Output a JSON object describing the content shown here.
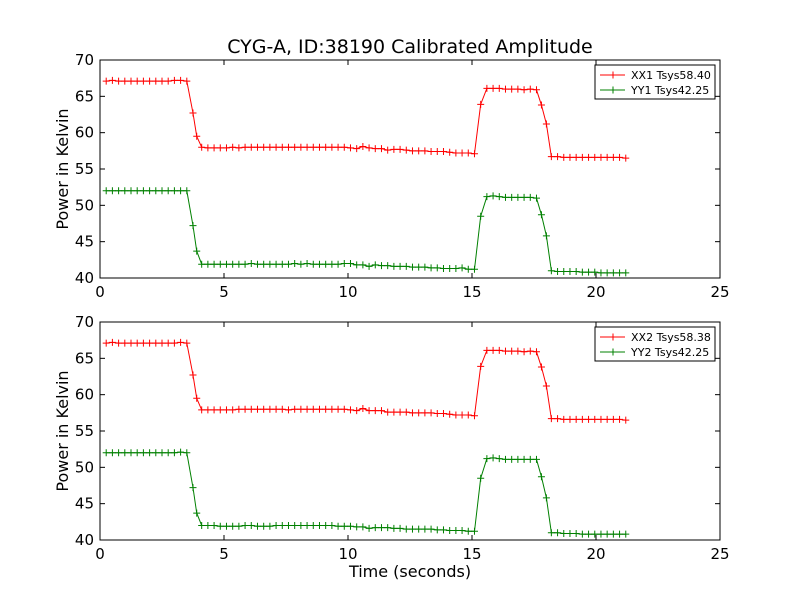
{
  "figure": {
    "title": "CYG-A, ID:38190 Calibrated Amplitude"
  },
  "chart_data": [
    {
      "type": "line",
      "title": "CYG-A, ID:38190 Calibrated Amplitude",
      "xlabel": "",
      "ylabel": "Power in Kelvin",
      "xlim": [
        0,
        25
      ],
      "ylim": [
        40,
        70
      ],
      "xticks": [
        "0",
        "5",
        "10",
        "15",
        "20",
        "25"
      ],
      "yticks": [
        "40",
        "45",
        "50",
        "55",
        "60",
        "65",
        "70"
      ],
      "grid": false,
      "legend": "top-right",
      "marker": "plus",
      "series": [
        {
          "name": "XX1 Tsys58.40",
          "color": "#ff0000",
          "x": [
            0.25,
            0.5,
            0.75,
            1,
            1.25,
            1.5,
            1.75,
            2,
            2.25,
            2.5,
            2.75,
            3,
            3.25,
            3.5,
            3.75,
            3.9,
            4.1,
            4.35,
            4.6,
            4.85,
            5.1,
            5.35,
            5.6,
            5.85,
            6.1,
            6.35,
            6.6,
            6.85,
            7.1,
            7.35,
            7.6,
            7.85,
            8.1,
            8.35,
            8.6,
            8.85,
            9.1,
            9.35,
            9.6,
            9.85,
            10.1,
            10.35,
            10.6,
            10.85,
            11.1,
            11.35,
            11.6,
            11.85,
            12.1,
            12.35,
            12.6,
            12.85,
            13.1,
            13.35,
            13.6,
            13.85,
            14.1,
            14.35,
            14.6,
            14.85,
            15.1,
            15.35,
            15.6,
            15.85,
            16.1,
            16.35,
            16.6,
            16.85,
            17.1,
            17.35,
            17.6,
            17.8,
            18.0,
            18.2,
            18.45,
            18.7,
            18.95,
            19.2,
            19.45,
            19.7,
            19.95,
            20.2,
            20.45,
            20.7,
            20.95,
            21.2
          ],
          "y": [
            67.1,
            67.2,
            67.1,
            67.1,
            67.1,
            67.1,
            67.1,
            67.1,
            67.1,
            67.1,
            67.1,
            67.2,
            67.2,
            67.1,
            62.7,
            59.5,
            58.0,
            57.9,
            57.9,
            57.9,
            57.9,
            58.0,
            57.9,
            58.0,
            58.0,
            58.0,
            58.0,
            58.0,
            58.0,
            58.0,
            58.0,
            58.0,
            58.0,
            58.0,
            58.0,
            58.0,
            58.0,
            58.0,
            58.0,
            58.0,
            57.9,
            57.8,
            58.1,
            57.9,
            57.8,
            57.8,
            57.6,
            57.7,
            57.7,
            57.6,
            57.5,
            57.5,
            57.5,
            57.4,
            57.4,
            57.4,
            57.3,
            57.2,
            57.2,
            57.2,
            57.1,
            63.9,
            66.1,
            66.1,
            66.1,
            66.0,
            66.0,
            66.0,
            65.9,
            66.0,
            65.9,
            63.8,
            61.2,
            56.7,
            56.7,
            56.6,
            56.6,
            56.6,
            56.6,
            56.6,
            56.6,
            56.6,
            56.6,
            56.6,
            56.6,
            56.5
          ]
        },
        {
          "name": "YY1 Tsys42.25",
          "color": "#008000",
          "x": [
            0.25,
            0.5,
            0.75,
            1,
            1.25,
            1.5,
            1.75,
            2,
            2.25,
            2.5,
            2.75,
            3,
            3.25,
            3.5,
            3.75,
            3.9,
            4.1,
            4.35,
            4.6,
            4.85,
            5.1,
            5.35,
            5.6,
            5.85,
            6.1,
            6.35,
            6.6,
            6.85,
            7.1,
            7.35,
            7.6,
            7.85,
            8.1,
            8.35,
            8.6,
            8.85,
            9.1,
            9.35,
            9.6,
            9.85,
            10.1,
            10.35,
            10.6,
            10.85,
            11.1,
            11.35,
            11.6,
            11.85,
            12.1,
            12.35,
            12.6,
            12.85,
            13.1,
            13.35,
            13.6,
            13.85,
            14.1,
            14.35,
            14.6,
            14.85,
            15.1,
            15.35,
            15.6,
            15.85,
            16.1,
            16.35,
            16.6,
            16.85,
            17.1,
            17.35,
            17.6,
            17.8,
            18.0,
            18.2,
            18.45,
            18.7,
            18.95,
            19.2,
            19.45,
            19.7,
            19.95,
            20.2,
            20.45,
            20.7,
            20.95,
            21.2
          ],
          "y": [
            52.0,
            52.0,
            52.0,
            52.0,
            52.0,
            52.0,
            52.0,
            52.0,
            52.0,
            52.0,
            52.0,
            52.0,
            52.0,
            52.0,
            47.2,
            43.7,
            41.9,
            41.9,
            41.9,
            41.9,
            41.9,
            41.9,
            41.9,
            41.9,
            42.0,
            41.9,
            41.9,
            41.9,
            41.9,
            41.9,
            41.9,
            42.0,
            41.9,
            42.0,
            41.9,
            41.9,
            41.9,
            41.9,
            41.9,
            42.0,
            42.0,
            41.8,
            41.8,
            41.6,
            41.8,
            41.7,
            41.7,
            41.6,
            41.6,
            41.6,
            41.5,
            41.5,
            41.5,
            41.4,
            41.4,
            41.3,
            41.3,
            41.3,
            41.4,
            41.2,
            41.2,
            48.5,
            51.2,
            51.3,
            51.2,
            51.1,
            51.1,
            51.1,
            51.1,
            51.1,
            51.0,
            48.7,
            45.8,
            41.0,
            40.9,
            40.9,
            40.9,
            40.9,
            40.8,
            40.8,
            40.8,
            40.7,
            40.7,
            40.7,
            40.7,
            40.7
          ]
        }
      ]
    },
    {
      "type": "line",
      "title": "",
      "xlabel": "Time (seconds)",
      "ylabel": "Power in Kelvin",
      "xlim": [
        0,
        25
      ],
      "ylim": [
        40,
        70
      ],
      "xticks": [
        "0",
        "5",
        "10",
        "15",
        "20",
        "25"
      ],
      "yticks": [
        "40",
        "45",
        "50",
        "55",
        "60",
        "65",
        "70"
      ],
      "grid": false,
      "legend": "top-right",
      "marker": "plus",
      "series": [
        {
          "name": "XX2 Tsys58.38",
          "color": "#ff0000",
          "x": [
            0.25,
            0.5,
            0.75,
            1,
            1.25,
            1.5,
            1.75,
            2,
            2.25,
            2.5,
            2.75,
            3,
            3.25,
            3.5,
            3.75,
            3.9,
            4.1,
            4.35,
            4.6,
            4.85,
            5.1,
            5.35,
            5.6,
            5.85,
            6.1,
            6.35,
            6.6,
            6.85,
            7.1,
            7.35,
            7.6,
            7.85,
            8.1,
            8.35,
            8.6,
            8.85,
            9.1,
            9.35,
            9.6,
            9.85,
            10.1,
            10.35,
            10.6,
            10.85,
            11.1,
            11.35,
            11.6,
            11.85,
            12.1,
            12.35,
            12.6,
            12.85,
            13.1,
            13.35,
            13.6,
            13.85,
            14.1,
            14.35,
            14.6,
            14.85,
            15.1,
            15.35,
            15.6,
            15.85,
            16.1,
            16.35,
            16.6,
            16.85,
            17.1,
            17.35,
            17.6,
            17.8,
            18.0,
            18.2,
            18.45,
            18.7,
            18.95,
            19.2,
            19.45,
            19.7,
            19.95,
            20.2,
            20.45,
            20.7,
            20.95,
            21.2
          ],
          "y": [
            67.1,
            67.2,
            67.1,
            67.1,
            67.1,
            67.1,
            67.1,
            67.1,
            67.1,
            67.1,
            67.1,
            67.1,
            67.2,
            67.1,
            62.7,
            59.5,
            57.9,
            57.9,
            57.9,
            57.9,
            57.9,
            57.9,
            58.0,
            58.0,
            58.0,
            58.0,
            58.0,
            58.0,
            58.0,
            58.0,
            57.9,
            58.0,
            58.0,
            58.0,
            58.0,
            58.0,
            58.0,
            58.0,
            58.0,
            58.0,
            57.9,
            57.8,
            58.1,
            57.8,
            57.8,
            57.8,
            57.6,
            57.6,
            57.6,
            57.6,
            57.5,
            57.5,
            57.5,
            57.5,
            57.4,
            57.4,
            57.3,
            57.2,
            57.2,
            57.2,
            57.1,
            63.9,
            66.1,
            66.1,
            66.1,
            66.0,
            66.0,
            66.0,
            65.9,
            66.0,
            65.9,
            63.8,
            61.2,
            56.7,
            56.7,
            56.6,
            56.6,
            56.6,
            56.6,
            56.6,
            56.6,
            56.6,
            56.6,
            56.6,
            56.6,
            56.5
          ]
        },
        {
          "name": "YY2 Tsys42.25",
          "color": "#008000",
          "x": [
            0.25,
            0.5,
            0.75,
            1,
            1.25,
            1.5,
            1.75,
            2,
            2.25,
            2.5,
            2.75,
            3,
            3.25,
            3.5,
            3.75,
            3.9,
            4.1,
            4.35,
            4.6,
            4.85,
            5.1,
            5.35,
            5.6,
            5.85,
            6.1,
            6.35,
            6.6,
            6.85,
            7.1,
            7.35,
            7.6,
            7.85,
            8.1,
            8.35,
            8.6,
            8.85,
            9.1,
            9.35,
            9.6,
            9.85,
            10.1,
            10.35,
            10.6,
            10.85,
            11.1,
            11.35,
            11.6,
            11.85,
            12.1,
            12.35,
            12.6,
            12.85,
            13.1,
            13.35,
            13.6,
            13.85,
            14.1,
            14.35,
            14.6,
            14.85,
            15.1,
            15.35,
            15.6,
            15.85,
            16.1,
            16.35,
            16.6,
            16.85,
            17.1,
            17.35,
            17.6,
            17.8,
            18.0,
            18.2,
            18.45,
            18.7,
            18.95,
            19.2,
            19.45,
            19.7,
            19.95,
            20.2,
            20.45,
            20.7,
            20.95,
            21.2
          ],
          "y": [
            52.0,
            52.0,
            52.0,
            52.0,
            52.0,
            52.0,
            52.0,
            52.0,
            52.0,
            52.0,
            52.0,
            52.0,
            52.1,
            52.0,
            47.2,
            43.7,
            42.0,
            42.0,
            42.0,
            41.9,
            41.9,
            41.9,
            41.9,
            42.0,
            42.0,
            41.9,
            41.9,
            41.9,
            42.0,
            42.0,
            42.0,
            42.0,
            42.0,
            42.0,
            42.0,
            42.0,
            42.0,
            42.0,
            41.9,
            41.9,
            41.9,
            41.8,
            41.8,
            41.6,
            41.7,
            41.7,
            41.7,
            41.6,
            41.6,
            41.5,
            41.5,
            41.5,
            41.5,
            41.5,
            41.4,
            41.4,
            41.3,
            41.3,
            41.3,
            41.2,
            41.2,
            48.5,
            51.2,
            51.3,
            51.2,
            51.1,
            51.1,
            51.1,
            51.1,
            51.1,
            51.1,
            48.7,
            45.8,
            41.0,
            41.0,
            40.9,
            40.9,
            40.9,
            40.8,
            40.8,
            40.8,
            40.8,
            40.8,
            40.8,
            40.8,
            40.8
          ]
        }
      ]
    }
  ]
}
